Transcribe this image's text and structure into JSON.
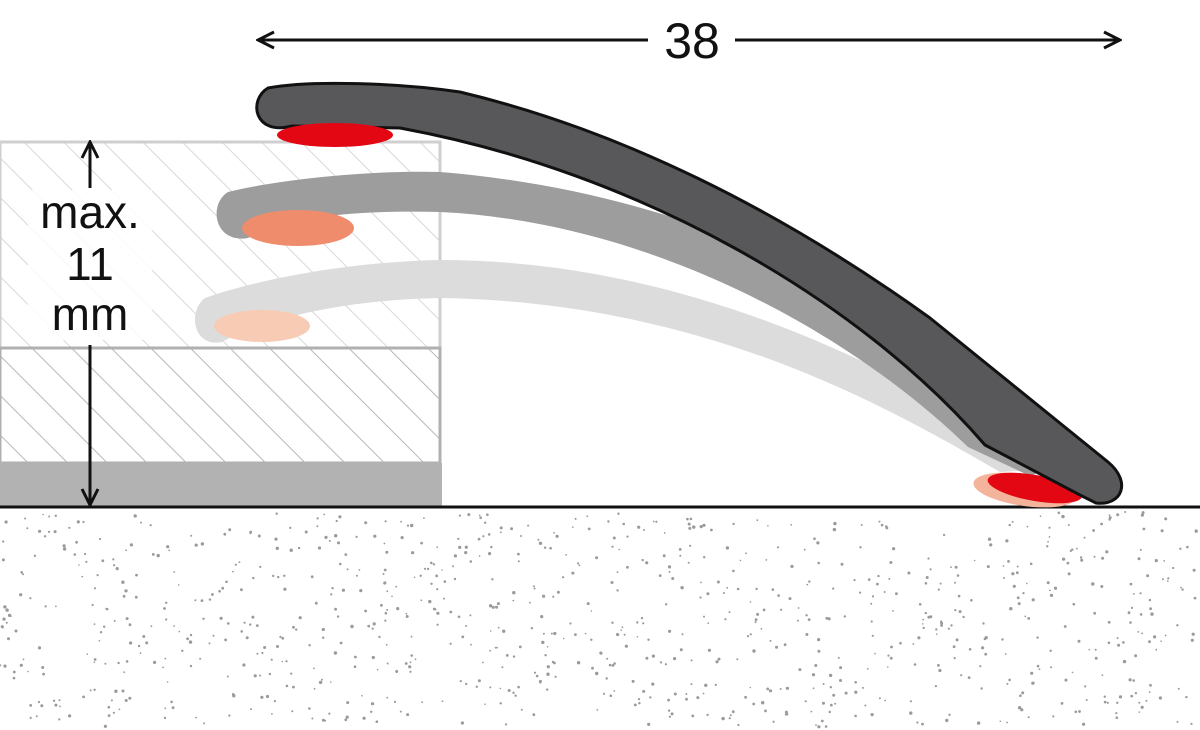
{
  "dimension_width": "38",
  "height_label": {
    "line1": "max.",
    "line2": "11",
    "line3": "mm"
  },
  "colors": {
    "profile_dark": "#58585a",
    "profile_medium": "#9d9d9d",
    "profile_light": "#dcdcdc",
    "adhesive_red": "#e30613",
    "adhesive_salmon": "#ee8c6c",
    "adhesive_pale": "#f8cbb4",
    "base_gray": "#b2b2b2"
  }
}
